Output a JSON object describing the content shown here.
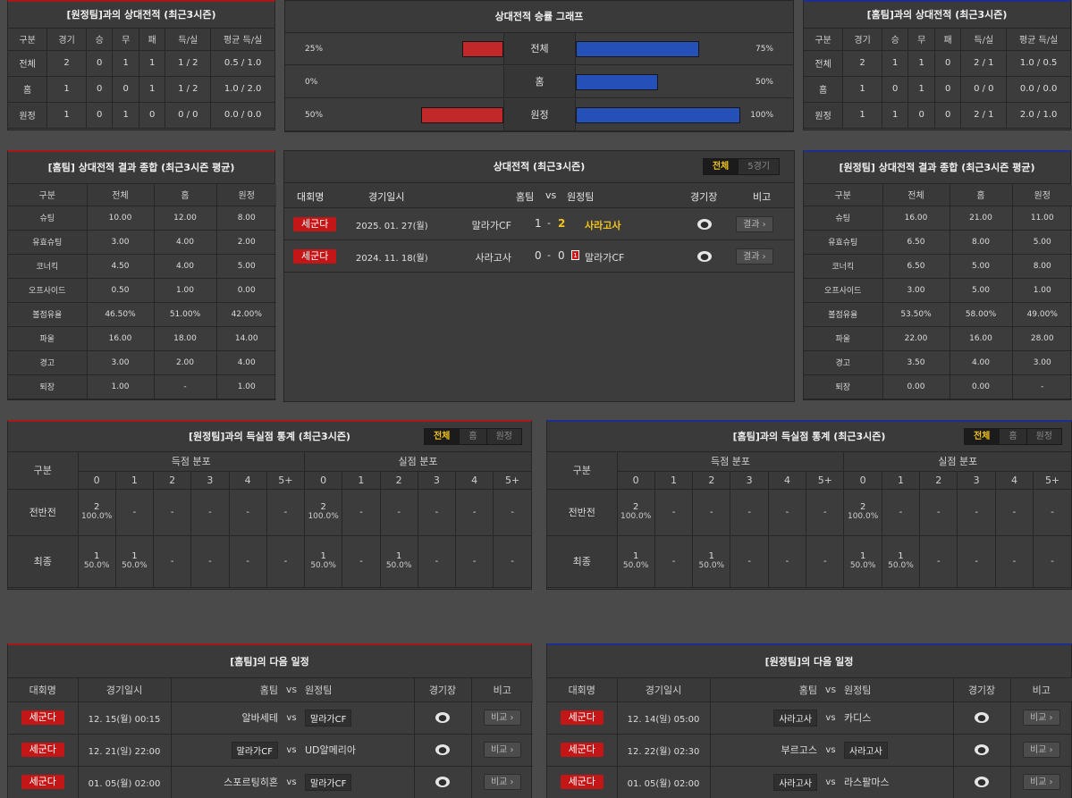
{
  "h2h_away_left": {
    "title": "[원정팀]과의 상대전적 (최근3시즌)",
    "headers": [
      "구분",
      "경기",
      "승",
      "무",
      "패",
      "득/실",
      "평균 득/실"
    ],
    "rows": [
      [
        "전체",
        "2",
        "0",
        "1",
        "1",
        "1 / 2",
        "0.5 / 1.0"
      ],
      [
        "홈",
        "1",
        "0",
        "0",
        "1",
        "1 / 2",
        "1.0 / 2.0"
      ],
      [
        "원정",
        "1",
        "0",
        "1",
        "0",
        "0 / 0",
        "0.0 / 0.0"
      ]
    ]
  },
  "winrate": {
    "title": "상대전적 승률 그래프",
    "rows": [
      {
        "label": "전체",
        "left_pct": "25%",
        "right_pct": "75%",
        "left": 25,
        "right": 75
      },
      {
        "label": "홈",
        "left_pct": "0%",
        "right_pct": "50%",
        "left": 0,
        "right": 50
      },
      {
        "label": "원정",
        "left_pct": "50%",
        "right_pct": "100%",
        "left": 50,
        "right": 100
      }
    ]
  },
  "h2h_home_right": {
    "title": "[홈팀]과의 상대전적 (최근3시즌)",
    "headers": [
      "구분",
      "경기",
      "승",
      "무",
      "패",
      "득/실",
      "평균 득/실"
    ],
    "rows": [
      [
        "전체",
        "2",
        "1",
        "1",
        "0",
        "2 / 1",
        "1.0 / 0.5"
      ],
      [
        "홈",
        "1",
        "0",
        "1",
        "0",
        "0 / 0",
        "0.0 / 0.0"
      ],
      [
        "원정",
        "1",
        "1",
        "0",
        "0",
        "2 / 1",
        "2.0 / 1.0"
      ]
    ]
  },
  "summary_home": {
    "title": "[홈팀] 상대전적 결과 종합 (최근3시즌 평균)",
    "headers": [
      "구분",
      "전체",
      "홈",
      "원정"
    ],
    "rows": [
      [
        "슈팅",
        "10.00",
        "12.00",
        "8.00"
      ],
      [
        "유효슈팅",
        "3.00",
        "4.00",
        "2.00"
      ],
      [
        "코너킥",
        "4.50",
        "4.00",
        "5.00"
      ],
      [
        "오프사이드",
        "0.50",
        "1.00",
        "0.00"
      ],
      [
        "볼점유율",
        "46.50%",
        "51.00%",
        "42.00%"
      ],
      [
        "파울",
        "16.00",
        "18.00",
        "14.00"
      ],
      [
        "경고",
        "3.00",
        "2.00",
        "4.00"
      ],
      [
        "퇴장",
        "1.00",
        "-",
        "1.00"
      ]
    ]
  },
  "recent": {
    "title": "상대전적 (최근3시즌)",
    "tabs": [
      "전체",
      "5경기"
    ],
    "headers": {
      "comp": "대회명",
      "date": "경기일시",
      "home": "홈팀",
      "vs": "vs",
      "away": "원정팀",
      "venue": "경기장",
      "note": "비고"
    },
    "matches": [
      {
        "comp": "세군다",
        "date": "2025. 01. 27(월)",
        "home": "말라가CF",
        "score_home": "1",
        "dash": "-",
        "score_away": "2",
        "away": "사라고사",
        "red_card": "",
        "result": "결과 ›"
      },
      {
        "comp": "세군다",
        "date": "2024. 11. 18(월)",
        "home": "사라고사",
        "score_home": "0",
        "dash": "-",
        "score_away": "0",
        "away": "말라가CF",
        "red_card": "1",
        "result": "결과 ›"
      }
    ]
  },
  "summary_away": {
    "title": "[원정팀] 상대전적 결과 종합 (최근3시즌 평균)",
    "headers": [
      "구분",
      "전체",
      "홈",
      "원정"
    ],
    "rows": [
      [
        "슈팅",
        "16.00",
        "21.00",
        "11.00"
      ],
      [
        "유효슈팅",
        "6.50",
        "8.00",
        "5.00"
      ],
      [
        "코너킥",
        "6.50",
        "5.00",
        "8.00"
      ],
      [
        "오프사이드",
        "3.00",
        "5.00",
        "1.00"
      ],
      [
        "볼점유율",
        "53.50%",
        "58.00%",
        "49.00%"
      ],
      [
        "파울",
        "22.00",
        "16.00",
        "28.00"
      ],
      [
        "경고",
        "3.50",
        "4.00",
        "3.00"
      ],
      [
        "퇴장",
        "0.00",
        "0.00",
        "-"
      ]
    ]
  },
  "goals_left": {
    "title": "[원정팀]과의 득실점 통계 (최근3시즌)",
    "tabs": [
      "전체",
      "홈",
      "원정"
    ],
    "col": "구분",
    "scored": "득점 분포",
    "conceded": "실점 분포",
    "nums": [
      "0",
      "1",
      "2",
      "3",
      "4",
      "5+"
    ],
    "rows": [
      {
        "label": "전반전",
        "cells": [
          [
            "2",
            "100.0%"
          ],
          [
            "-",
            ""
          ],
          [
            "-",
            ""
          ],
          [
            "-",
            ""
          ],
          [
            "-",
            ""
          ],
          [
            "-",
            ""
          ],
          [
            "2",
            "100.0%"
          ],
          [
            "-",
            ""
          ],
          [
            "-",
            ""
          ],
          [
            "-",
            ""
          ],
          [
            "-",
            ""
          ],
          [
            "-",
            ""
          ]
        ]
      },
      {
        "label": "최종",
        "cells": [
          [
            "1",
            "50.0%"
          ],
          [
            "1",
            "50.0%"
          ],
          [
            "-",
            ""
          ],
          [
            "-",
            ""
          ],
          [
            "-",
            ""
          ],
          [
            "-",
            ""
          ],
          [
            "1",
            "50.0%"
          ],
          [
            "-",
            ""
          ],
          [
            "1",
            "50.0%"
          ],
          [
            "-",
            ""
          ],
          [
            "-",
            ""
          ],
          [
            "-",
            ""
          ]
        ]
      }
    ]
  },
  "goals_right": {
    "title": "[홈팀]과의 득실점 통계 (최근3시즌)",
    "tabs": [
      "전체",
      "홈",
      "원정"
    ],
    "col": "구분",
    "scored": "득점 분포",
    "conceded": "실점 분포",
    "nums": [
      "0",
      "1",
      "2",
      "3",
      "4",
      "5+"
    ],
    "rows": [
      {
        "label": "전반전",
        "cells": [
          [
            "2",
            "100.0%"
          ],
          [
            "-",
            ""
          ],
          [
            "-",
            ""
          ],
          [
            "-",
            ""
          ],
          [
            "-",
            ""
          ],
          [
            "-",
            ""
          ],
          [
            "2",
            "100.0%"
          ],
          [
            "-",
            ""
          ],
          [
            "-",
            ""
          ],
          [
            "-",
            ""
          ],
          [
            "-",
            ""
          ],
          [
            "-",
            ""
          ]
        ]
      },
      {
        "label": "최종",
        "cells": [
          [
            "1",
            "50.0%"
          ],
          [
            "-",
            ""
          ],
          [
            "1",
            "50.0%"
          ],
          [
            "-",
            ""
          ],
          [
            "-",
            ""
          ],
          [
            "-",
            ""
          ],
          [
            "1",
            "50.0%"
          ],
          [
            "1",
            "50.0%"
          ],
          [
            "-",
            ""
          ],
          [
            "-",
            ""
          ],
          [
            "-",
            ""
          ],
          [
            "-",
            ""
          ]
        ]
      }
    ]
  },
  "next_home": {
    "title": "[홈팀]의 다음 일정",
    "headers": {
      "comp": "대회명",
      "date": "경기일시",
      "home": "홈팀",
      "vs": "vs",
      "away": "원정팀",
      "venue": "경기장",
      "note": "비고"
    },
    "matches": [
      {
        "comp": "세군다",
        "date": "12. 15(월) 00:15",
        "home": "알바세테",
        "vs": "vs",
        "away": "말라가CF",
        "boxed": "away",
        "btn": "비교 ›"
      },
      {
        "comp": "세군다",
        "date": "12. 21(일) 22:00",
        "home": "말라가CF",
        "vs": "vs",
        "away": "UD알메리아",
        "boxed": "home",
        "btn": "비교 ›"
      },
      {
        "comp": "세군다",
        "date": "01. 05(월) 02:00",
        "home": "스포르팅히혼",
        "vs": "vs",
        "away": "말라가CF",
        "boxed": "away",
        "btn": "비교 ›"
      }
    ]
  },
  "next_away": {
    "title": "[원정팀]의 다음 일정",
    "headers": {
      "comp": "대회명",
      "date": "경기일시",
      "home": "홈팀",
      "vs": "vs",
      "away": "원정팀",
      "venue": "경기장",
      "note": "비고"
    },
    "matches": [
      {
        "comp": "세군다",
        "date": "12. 14(일) 05:00",
        "home": "사라고사",
        "vs": "vs",
        "away": "카디스",
        "boxed": "home",
        "btn": "비교 ›"
      },
      {
        "comp": "세군다",
        "date": "12. 22(월) 02:30",
        "home": "부르고스",
        "vs": "vs",
        "away": "사라고사",
        "boxed": "away",
        "btn": "비교 ›"
      },
      {
        "comp": "세군다",
        "date": "01. 05(월) 02:00",
        "home": "사라고사",
        "vs": "vs",
        "away": "라스팔마스",
        "boxed": "home",
        "btn": "비교 ›"
      }
    ]
  }
}
